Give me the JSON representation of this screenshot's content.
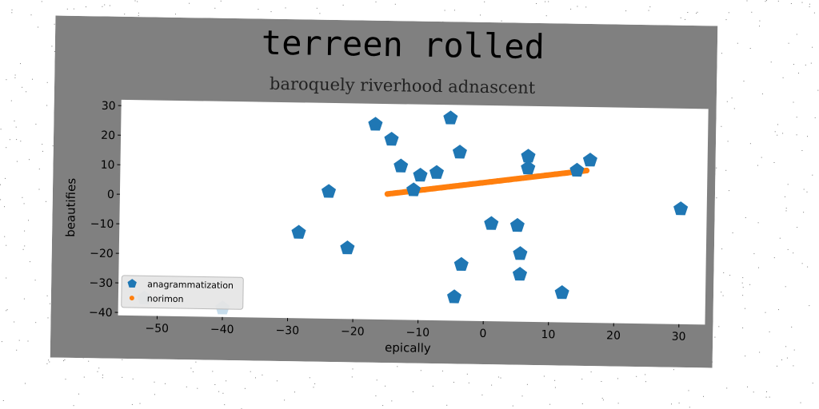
{
  "chart_data": {
    "type": "scatter",
    "title": "terreen rolled",
    "subtitle": "baroquely riverhood adnascent",
    "xlabel": "epically",
    "ylabel": "beautifies",
    "xlim": [
      -56,
      34
    ],
    "ylim": [
      -41,
      32
    ],
    "xticks": [
      -50,
      -40,
      -30,
      -20,
      -10,
      0,
      10,
      20,
      30
    ],
    "yticks": [
      -40,
      -30,
      -20,
      -10,
      0,
      10,
      20,
      30
    ],
    "legend_position": "lower-left",
    "series": [
      {
        "name": "anagrammatization",
        "marker": "pentagon",
        "color": "#1f77b4",
        "points": [
          [
            -17,
            25
          ],
          [
            -14.5,
            20
          ],
          [
            -5.5,
            27.5
          ],
          [
            -4,
            16
          ],
          [
            -13,
            11
          ],
          [
            -10,
            8
          ],
          [
            -7.5,
            9
          ],
          [
            -11,
            3
          ],
          [
            -24,
            2
          ],
          [
            -28.5,
            -12
          ],
          [
            -21,
            -17
          ],
          [
            -3.5,
            -22
          ],
          [
            -4.5,
            -33
          ],
          [
            1,
            -8
          ],
          [
            5,
            -8.5
          ],
          [
            5.5,
            -18
          ],
          [
            5.5,
            -25
          ],
          [
            6.5,
            15
          ],
          [
            6.5,
            11
          ],
          [
            14,
            10.5
          ],
          [
            16,
            14
          ],
          [
            12,
            -31
          ],
          [
            30,
            -2
          ],
          [
            -52,
            -35
          ],
          [
            -40,
            -38
          ]
        ]
      },
      {
        "name": "norimon",
        "marker": "circle",
        "color": "#ff7f0e",
        "x_start": -15,
        "y_start": 1.5,
        "x_end": 15.5,
        "y_end": 10.5
      }
    ]
  }
}
